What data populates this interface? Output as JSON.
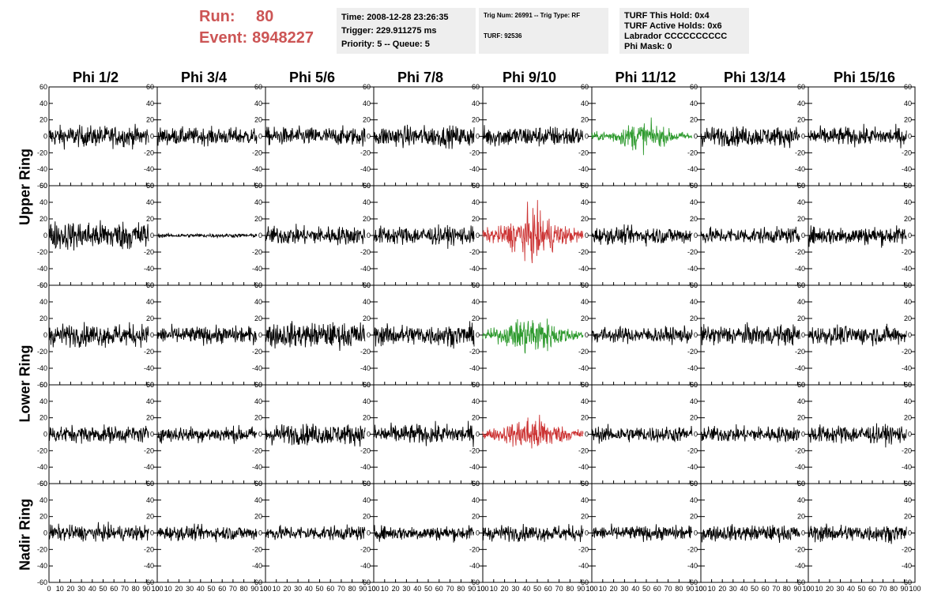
{
  "header": {
    "run_label": "Run:",
    "run_value": "80",
    "event_label": "Event:",
    "event_value": "8948227",
    "time_line": "Time: 2008-12-28 23:26:35",
    "trigger_line": "Trigger: 229.911275 ms",
    "priority_line": "Priority: 5 -- Queue: 5",
    "trig_num_line": "Trig Num: 26991 -- Trig Type: RF",
    "turf_line": "TURF: 92536",
    "turf_hold_line": "TURF This Hold: 0x4",
    "turf_active_line": "TURF Active Holds: 0x6",
    "labrador_line": "Labrador CCCCCCCCCC",
    "phi_mask_line": "Phi Mask: 0"
  },
  "columns": [
    "Phi 1/2",
    "Phi 3/4",
    "Phi 5/6",
    "Phi 7/8",
    "Phi 9/10",
    "Phi 11/12",
    "Phi 13/14",
    "Phi 15/16"
  ],
  "ring_labels": [
    "Upper Ring",
    "Lower Ring",
    "Nadir Ring"
  ],
  "colors": {
    "normal": "#000000",
    "triggered_green": "#2e9a2e",
    "triggered_red": "#cc3333"
  },
  "chart_data": {
    "type": "line",
    "rows": 5,
    "cols": 8,
    "ylim": [
      -60,
      60
    ],
    "xlim": [
      0,
      100
    ],
    "y_ticks": [
      -60,
      -40,
      -20,
      0,
      20,
      40,
      60
    ],
    "y_tick_labels": [
      "-60",
      "-40",
      "-20",
      "0",
      "20",
      "40",
      "60"
    ],
    "x_ticks": [
      0,
      10,
      20,
      30,
      40,
      50,
      60,
      70,
      80,
      90,
      100
    ],
    "x_tick_labels": [
      "0",
      "10",
      "20",
      "30",
      "40",
      "50",
      "60",
      "70",
      "80",
      "90",
      "100"
    ],
    "x_range_data": [
      0,
      92
    ],
    "panels": [
      [
        {
          "color": "normal",
          "amp": 16,
          "burst": false
        },
        {
          "color": "normal",
          "amp": 13,
          "burst": false
        },
        {
          "color": "normal",
          "amp": 14,
          "burst": false
        },
        {
          "color": "normal",
          "amp": 16,
          "burst": false
        },
        {
          "color": "normal",
          "amp": 16,
          "burst": false
        },
        {
          "color": "triggered_green",
          "amp": 13,
          "burst": true
        },
        {
          "color": "normal",
          "amp": 15,
          "burst": false
        },
        {
          "color": "normal",
          "amp": 14,
          "burst": false
        }
      ],
      [
        {
          "color": "normal",
          "amp": 22,
          "burst": false
        },
        {
          "color": "normal",
          "amp": 3,
          "burst": false
        },
        {
          "color": "normal",
          "amp": 14,
          "burst": false
        },
        {
          "color": "normal",
          "amp": 14,
          "burst": false
        },
        {
          "color": "triggered_red",
          "amp": 22,
          "burst": true
        },
        {
          "color": "normal",
          "amp": 13,
          "burst": false
        },
        {
          "color": "normal",
          "amp": 12,
          "burst": false
        },
        {
          "color": "normal",
          "amp": 14,
          "burst": false
        }
      ],
      [
        {
          "color": "normal",
          "amp": 17,
          "burst": false
        },
        {
          "color": "normal",
          "amp": 13,
          "burst": false
        },
        {
          "color": "normal",
          "amp": 19,
          "burst": false
        },
        {
          "color": "normal",
          "amp": 16,
          "burst": false
        },
        {
          "color": "triggered_green",
          "amp": 18,
          "burst": true
        },
        {
          "color": "normal",
          "amp": 12,
          "burst": false
        },
        {
          "color": "normal",
          "amp": 15,
          "burst": false
        },
        {
          "color": "normal",
          "amp": 14,
          "burst": false
        }
      ],
      [
        {
          "color": "normal",
          "amp": 13,
          "burst": false
        },
        {
          "color": "normal",
          "amp": 12,
          "burst": false
        },
        {
          "color": "normal",
          "amp": 16,
          "burst": false
        },
        {
          "color": "normal",
          "amp": 15,
          "burst": false
        },
        {
          "color": "triggered_red",
          "amp": 17,
          "burst": true
        },
        {
          "color": "normal",
          "amp": 12,
          "burst": false
        },
        {
          "color": "normal",
          "amp": 12,
          "burst": false
        },
        {
          "color": "normal",
          "amp": 14,
          "burst": false
        }
      ],
      [
        {
          "color": "normal",
          "amp": 12,
          "burst": false
        },
        {
          "color": "normal",
          "amp": 11,
          "burst": false
        },
        {
          "color": "normal",
          "amp": 11,
          "burst": false
        },
        {
          "color": "normal",
          "amp": 11,
          "burst": false
        },
        {
          "color": "normal",
          "amp": 12,
          "burst": false
        },
        {
          "color": "normal",
          "amp": 11,
          "burst": false
        },
        {
          "color": "normal",
          "amp": 12,
          "burst": false
        },
        {
          "color": "normal",
          "amp": 13,
          "burst": false
        }
      ]
    ]
  }
}
